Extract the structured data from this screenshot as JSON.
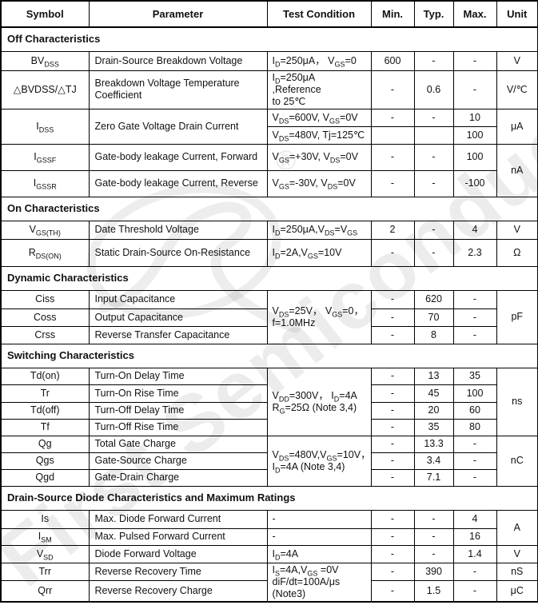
{
  "watermark": {
    "text": "First Semiconductor",
    "registered": "®"
  },
  "header": {
    "symbol": "Symbol",
    "parameter": "Parameter",
    "test": "Test Condition",
    "min": "Min.",
    "typ": "Typ.",
    "max": "Max.",
    "unit": "Unit"
  },
  "sections": {
    "off": "Off Characteristics",
    "on": "On Characteristics",
    "dynamic": "Dynamic Characteristics",
    "switching": "Switching Characteristics",
    "diode": "Drain-Source Diode Characteristics and Maximum Ratings"
  },
  "rows": {
    "bvdss": {
      "sym": [
        {
          "t": "BV"
        },
        {
          "t": "DSS",
          "sub": true
        }
      ],
      "param": "Drain-Source Breakdown Voltage",
      "test": [
        {
          "t": "I"
        },
        {
          "t": "D",
          "sub": true
        },
        {
          "t": "=250μA， V"
        },
        {
          "t": "GS",
          "sub": true
        },
        {
          "t": "=0"
        }
      ],
      "min": "600",
      "typ": "-",
      "max": "-",
      "unit": "V"
    },
    "bvtc": {
      "sym": [
        {
          "t": "△BVDSS/△TJ"
        }
      ],
      "param": "Breakdown Voltage Temperature Coefficient",
      "test": [
        {
          "t": "I"
        },
        {
          "t": "D",
          "sub": true
        },
        {
          "t": "=250μA ,Reference"
        },
        {
          "br": true
        },
        {
          "t": "to 25℃"
        }
      ],
      "min": "-",
      "typ": "0.6",
      "max": "-",
      "unit": "V/℃"
    },
    "idss": {
      "sym": [
        {
          "t": "I"
        },
        {
          "t": "DSS",
          "sub": true
        }
      ],
      "param": "Zero Gate Voltage Drain Current",
      "test1": [
        {
          "t": "V"
        },
        {
          "t": "DS",
          "sub": true
        },
        {
          "t": "=600V, V"
        },
        {
          "t": "GS",
          "sub": true
        },
        {
          "t": "=0V"
        }
      ],
      "min1": "-",
      "typ1": "-",
      "max1": "10",
      "test2": [
        {
          "t": "V"
        },
        {
          "t": "DS",
          "sub": true
        },
        {
          "t": "=480V, Tj=125℃"
        }
      ],
      "min2": "",
      "typ2": "",
      "max2": "100",
      "unit": "μA"
    },
    "igssf": {
      "sym": [
        {
          "t": "I"
        },
        {
          "t": "GSSF",
          "sub": true
        }
      ],
      "param": "Gate-body leakage Current, Forward",
      "test": [
        {
          "t": "V"
        },
        {
          "t": "GS",
          "sub": true
        },
        {
          "t": "=+30V, V"
        },
        {
          "t": "DS",
          "sub": true
        },
        {
          "t": "=0V"
        }
      ],
      "min": "-",
      "typ": "-",
      "max": "100",
      "unit": "nA"
    },
    "igssr": {
      "sym": [
        {
          "t": "I"
        },
        {
          "t": "GSSR",
          "sub": true
        }
      ],
      "param": "Gate-body leakage Current, Reverse",
      "test": [
        {
          "t": "V"
        },
        {
          "t": "GS",
          "sub": true
        },
        {
          "t": "=-30V, V"
        },
        {
          "t": "DS",
          "sub": true
        },
        {
          "t": "=0V"
        }
      ],
      "min": "-",
      "typ": "-",
      "max": "-100"
    },
    "vgsth": {
      "sym": [
        {
          "t": "V"
        },
        {
          "t": "GS(TH)",
          "sub": true
        }
      ],
      "param": "Date Threshold Voltage",
      "test": [
        {
          "t": "I"
        },
        {
          "t": "D",
          "sub": true
        },
        {
          "t": "=250μA,V"
        },
        {
          "t": "DS",
          "sub": true
        },
        {
          "t": "=V"
        },
        {
          "t": "GS",
          "sub": true
        }
      ],
      "min": "2",
      "typ": "-",
      "max": "4",
      "unit": "V"
    },
    "rdson": {
      "sym": [
        {
          "t": "R"
        },
        {
          "t": "DS(ON)",
          "sub": true
        }
      ],
      "param": "Static Drain-Source On-Resistance",
      "test": [
        {
          "t": "I"
        },
        {
          "t": "D",
          "sub": true
        },
        {
          "t": "=2A,V"
        },
        {
          "t": "GS",
          "sub": true
        },
        {
          "t": "=10V"
        }
      ],
      "min": "-",
      "typ": "-",
      "max": "2.3",
      "unit": "Ω"
    },
    "ciss": {
      "sym": [
        {
          "t": "Ciss"
        }
      ],
      "param": "Input Capacitance",
      "min": "-",
      "typ": "620",
      "max": "-"
    },
    "coss": {
      "sym": [
        {
          "t": "Coss"
        }
      ],
      "param": "Output Capacitance",
      "min": "-",
      "typ": "70",
      "max": "-"
    },
    "crss": {
      "sym": [
        {
          "t": "Crss"
        }
      ],
      "param": "Reverse Transfer Capacitance",
      "min": "-",
      "typ": "8",
      "max": "-"
    },
    "cap_group": {
      "test": [
        {
          "t": "V"
        },
        {
          "t": "DS",
          "sub": true
        },
        {
          "t": "=25V， V"
        },
        {
          "t": "GS",
          "sub": true
        },
        {
          "t": "=0，"
        },
        {
          "br": true
        },
        {
          "t": "f=1.0MHz"
        }
      ],
      "unit": "pF"
    },
    "tdon": {
      "sym": [
        {
          "t": "Td(on)"
        }
      ],
      "param": "Turn-On Delay Time",
      "min": "-",
      "typ": "13",
      "max": "35"
    },
    "tr": {
      "sym": [
        {
          "t": "Tr"
        }
      ],
      "param": "Turn-On Rise Time",
      "min": "-",
      "typ": "45",
      "max": "100"
    },
    "tdoff": {
      "sym": [
        {
          "t": "Td(off)"
        }
      ],
      "param": "Turn-Off Delay Time",
      "min": "-",
      "typ": "20",
      "max": "60"
    },
    "tf": {
      "sym": [
        {
          "t": "Tf"
        }
      ],
      "param": "Turn-Off Rise Time",
      "min": "-",
      "typ": "35",
      "max": "80"
    },
    "sw_group": {
      "test": [
        {
          "t": "V"
        },
        {
          "t": "DD",
          "sub": true
        },
        {
          "t": "=300V， I"
        },
        {
          "t": "D",
          "sub": true
        },
        {
          "t": "=4A"
        },
        {
          "br": true
        },
        {
          "t": "R"
        },
        {
          "t": "G",
          "sub": true
        },
        {
          "t": "=25Ω (Note 3,4)"
        }
      ],
      "unit": "ns"
    },
    "qg": {
      "sym": [
        {
          "t": "Qg"
        }
      ],
      "param": "Total Gate Charge",
      "min": "-",
      "typ": "13.3",
      "max": "-"
    },
    "qgs": {
      "sym": [
        {
          "t": "Qgs"
        }
      ],
      "param": "Gate-Source Charge",
      "min": "-",
      "typ": "3.4",
      "max": "-"
    },
    "qgd": {
      "sym": [
        {
          "t": "Qgd"
        }
      ],
      "param": "Gate-Drain Charge",
      "min": "-",
      "typ": "7.1",
      "max": "-"
    },
    "charge_group": {
      "test": [
        {
          "t": "V"
        },
        {
          "t": "DS",
          "sub": true
        },
        {
          "t": "=480V,V"
        },
        {
          "t": "GS",
          "sub": true
        },
        {
          "t": "=10V，"
        },
        {
          "br": true
        },
        {
          "t": "I"
        },
        {
          "t": "D",
          "sub": true
        },
        {
          "t": "=4A (Note 3,4)"
        }
      ],
      "unit": "nC"
    },
    "is": {
      "sym": [
        {
          "t": "Is"
        }
      ],
      "param": "Max. Diode Forward Current",
      "test": [
        {
          "t": "-"
        }
      ],
      "min": "-",
      "typ": "-",
      "max": "4",
      "unit": "A"
    },
    "ism": {
      "sym": [
        {
          "t": "I"
        },
        {
          "t": "SM",
          "sub": true
        }
      ],
      "param": "Max. Pulsed Forward Current",
      "test": [
        {
          "t": "-"
        }
      ],
      "min": "-",
      "typ": "-",
      "max": "16"
    },
    "vsd": {
      "sym": [
        {
          "t": "V"
        },
        {
          "t": "SD",
          "sub": true
        }
      ],
      "param": "Diode Forward Voltage",
      "test": [
        {
          "t": "I"
        },
        {
          "t": "D",
          "sub": true
        },
        {
          "t": "=4A"
        }
      ],
      "min": "-",
      "typ": "-",
      "max": "1.4",
      "unit": "V"
    },
    "trr": {
      "sym": [
        {
          "t": "Trr"
        }
      ],
      "param": "Reverse Recovery Time",
      "min": "-",
      "typ": "390",
      "max": "-",
      "unit": "nS"
    },
    "qrr": {
      "sym": [
        {
          "t": "Qrr"
        }
      ],
      "param": "Reverse Recovery Charge",
      "min": "-",
      "typ": "1.5",
      "max": "-",
      "unit": "μC"
    },
    "diode_group": {
      "test": [
        {
          "t": "I"
        },
        {
          "t": "S",
          "sub": true
        },
        {
          "t": "=4A,V"
        },
        {
          "t": "GS",
          "sub": true
        },
        {
          "t": " =0V"
        },
        {
          "br": true
        },
        {
          "t": "diF/dt=100A/μs"
        },
        {
          "br": true
        },
        {
          "t": "(Note3)"
        }
      ]
    }
  }
}
